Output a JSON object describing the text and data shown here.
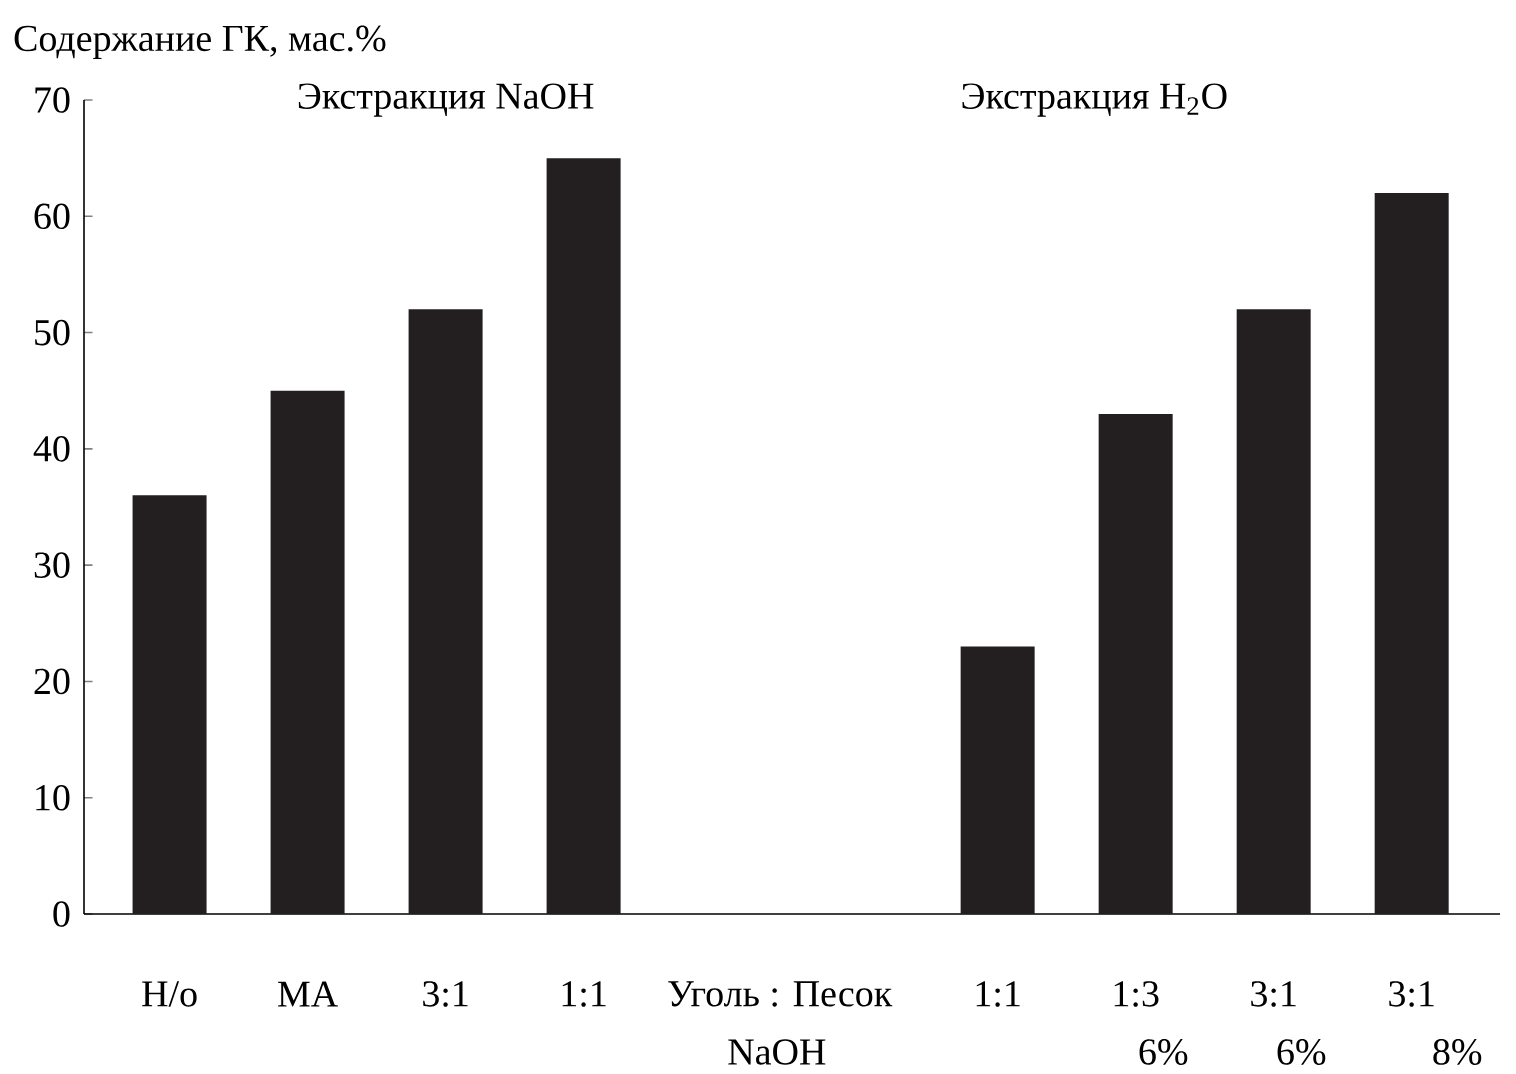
{
  "chart_data": {
    "type": "bar",
    "ylabel": "Содержание ГК, мас.%",
    "categories": [
      "Н/о",
      "МА",
      "3:1",
      "1:1",
      null,
      null,
      "1:1",
      "1:3",
      "3:1",
      "3:1"
    ],
    "values": [
      36,
      45,
      52,
      65,
      null,
      null,
      23,
      43,
      52,
      62
    ],
    "color": "#231f20",
    "ylim": [
      0,
      70
    ],
    "yticks": [
      0,
      10,
      20,
      30,
      40,
      50,
      60,
      70
    ],
    "grid": false,
    "annotations": [
      "Экстракция NaOH",
      "Экстракция H$_{2}$O",
      "Уголь : Песок",
      "NaOH",
      "6%",
      "6%",
      "8%"
    ]
  }
}
